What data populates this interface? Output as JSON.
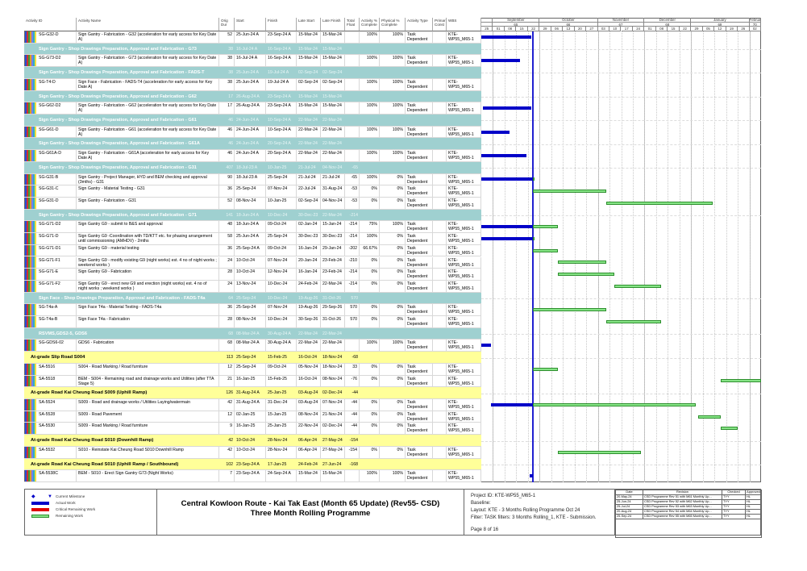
{
  "columns": {
    "id": "Activity ID",
    "name": "Activity Name",
    "dur": "Orig Dur",
    "start": "Start",
    "finish": "Finish",
    "lstart": "Late Start",
    "lfinish": "Late Finish",
    "tf": "Total Float",
    "apc": "Activity % Complete",
    "ppc": "Physical % Complete",
    "type": "Activity Type",
    "pc": "Primar Const",
    "wbs": "WBS"
  },
  "gantt": {
    "timeline_start": "25-Aug-24",
    "data_date": "25-Sep-24",
    "months": [
      {
        "name": "",
        "num": "",
        "weeks": 1
      },
      {
        "name": "September",
        "num": "65",
        "weeks": 4
      },
      {
        "name": "October",
        "num": "66",
        "weeks": 5
      },
      {
        "name": "November",
        "num": "67",
        "weeks": 4
      },
      {
        "name": "December",
        "num": "68",
        "weeks": 4
      },
      {
        "name": "January",
        "num": "69",
        "weeks": 5
      },
      {
        "name": "Februa",
        "num": "70",
        "weeks": 1
      }
    ],
    "weeks": [
      "25",
      "01",
      "08",
      "15",
      "22",
      "29",
      "06",
      "13",
      "20",
      "27",
      "03",
      "10",
      "17",
      "24",
      "01",
      "08",
      "15",
      "22",
      "29",
      "05",
      "12",
      "19",
      "26",
      "02"
    ],
    "colors": {
      "actual": "#0000c8",
      "remaining": "#86e486",
      "critical": "#e00000",
      "band": "#9fd0d0",
      "summary": "#ffff99"
    }
  },
  "rows": [
    {
      "kind": "act",
      "id": "SG-G32-D",
      "name": "Sign Gantry - Fabrication - G32 (acceleration for early access for Key Date A)",
      "dur": "52",
      "start": "25-Jun-24 A",
      "finish": "23-Sep-24 A",
      "lstart": "15-Mar-24",
      "lfinish": "15-Mar-24",
      "tf": "",
      "apc": "100%",
      "ppc": "100%",
      "type": "Task Dependent",
      "wbs": "KTE-WP55_M65-1"
    },
    {
      "kind": "band",
      "name": "Sign Gantry - Shop Drawings Preparation, Approval and Fabrication - G73",
      "dur": "38",
      "start": "16-Jul-24 A",
      "finish": "16-Sep-24 A",
      "lstart": "15-Mar-24",
      "lfinish": "15-Mar-24",
      "tf": ""
    },
    {
      "kind": "act",
      "id": "SG-G73-D2",
      "name": "Sign Gantry - Fabrication - G73 (acceleration for early access for Key Date A)",
      "dur": "38",
      "start": "16-Jul-24 A",
      "finish": "16-Sep-24 A",
      "lstart": "15-Mar-24",
      "lfinish": "15-Mar-24",
      "tf": "",
      "apc": "100%",
      "ppc": "100%",
      "type": "Task Dependent",
      "wbs": "KTE-WP55_M65-1"
    },
    {
      "kind": "band",
      "name": "Sign Gantry - Shop Drawings Preparation, Approval and Fabrication - FADS-T",
      "dur": "38",
      "start": "25-Jun-24 A",
      "finish": "19-Jul-24 A",
      "lstart": "02-Sep-24",
      "lfinish": "02-Sep-24",
      "tf": ""
    },
    {
      "kind": "act",
      "id": "SG-T4-D",
      "name": "Sign Face - Fabrication - FADS-T4 (acceleration for early access for Key Date A)",
      "dur": "38",
      "start": "25-Jun-24 A",
      "finish": "19-Jul-24 A",
      "lstart": "02-Sep-24",
      "lfinish": "02-Sep-24",
      "tf": "",
      "apc": "100%",
      "ppc": "100%",
      "type": "Task Dependent",
      "wbs": "KTE-WP55_M65-1"
    },
    {
      "kind": "band",
      "name": "Sign Gantry - Shop Drawings Preparation, Approval and Fabrication - G62",
      "dur": "17",
      "start": "26-Aug-24 A",
      "finish": "23-Sep-24 A",
      "lstart": "15-Mar-24",
      "lfinish": "15-Mar-24",
      "tf": ""
    },
    {
      "kind": "act",
      "id": "SG-G62-D2",
      "name": "Sign Gantry - Fabrication - G62 (acceleration for early access for Key Date A)",
      "dur": "17",
      "start": "26-Aug-24 A",
      "finish": "23-Sep-24 A",
      "lstart": "15-Mar-24",
      "lfinish": "15-Mar-24",
      "tf": "",
      "apc": "100%",
      "ppc": "100%",
      "type": "Task Dependent",
      "wbs": "KTE-WP55_M65-1"
    },
    {
      "kind": "band",
      "name": "Sign Gantry - Shop Drawings Preparation, Approval and Fabrication - G61",
      "dur": "46",
      "start": "24-Jun-24 A",
      "finish": "10-Sep-24 A",
      "lstart": "22-Mar-24",
      "lfinish": "22-Mar-24",
      "tf": ""
    },
    {
      "kind": "act",
      "id": "SG-G61-D",
      "name": "Sign Gantry - Fabrication - G61 (acceleration for early access for Key Date A)",
      "dur": "46",
      "start": "24-Jun-24 A",
      "finish": "10-Sep-24 A",
      "lstart": "22-Mar-24",
      "lfinish": "22-Mar-24",
      "tf": "",
      "apc": "100%",
      "ppc": "100%",
      "type": "Task Dependent",
      "wbs": "KTE-WP55_M65-1"
    },
    {
      "kind": "band",
      "name": "Sign Gantry - Shop Drawings Preparation, Approval and Fabrication - G61A",
      "dur": "46",
      "start": "24-Jun-24 A",
      "finish": "20-Sep-24 A",
      "lstart": "22-Mar-24",
      "lfinish": "22-Mar-24",
      "tf": ""
    },
    {
      "kind": "act",
      "id": "SG-G61A-D",
      "name": "Sign Gantry - Fabrication - G61A (acceleration for early access for Key Date A)",
      "dur": "46",
      "start": "24-Jun-24 A",
      "finish": "20-Sep-24 A",
      "lstart": "22-Mar-24",
      "lfinish": "22-Mar-24",
      "tf": "",
      "apc": "100%",
      "ppc": "100%",
      "type": "Task Dependent",
      "wbs": "KTE-WP55_M65-1"
    },
    {
      "kind": "band",
      "name": "Sign Gantry - Shop Drawings Preparation, Approval and Fabrication - G31",
      "dur": "407",
      "start": "18-Jul-23 A",
      "finish": "10-Jan-25",
      "lstart": "21-Jul-24",
      "lfinish": "04-Nov-24",
      "tf": "-65"
    },
    {
      "kind": "act",
      "id": "SG-G31-B",
      "name": "Sign Gantry - Project Manager, HYD and BEM checking and approval (3mths) - G31",
      "dur": "90",
      "start": "18-Jul-23 A",
      "finish": "25-Sep-24",
      "lstart": "21-Jul-24",
      "lfinish": "21-Jul-24",
      "tf": "-65",
      "apc": "100%",
      "ppc": "0%",
      "type": "Task Dependent",
      "wbs": "KTE-WP55_M65-1"
    },
    {
      "kind": "act",
      "id": "SG-G31-C",
      "name": "Sign Gantry - Material Testing - G31",
      "dur": "36",
      "start": "25-Sep-24",
      "finish": "07-Nov-24",
      "lstart": "22-Jul-24",
      "lfinish": "31-Aug-24",
      "tf": "-53",
      "apc": "0%",
      "ppc": "0%",
      "type": "Task Dependent",
      "wbs": "KTE-WP55_M65-1"
    },
    {
      "kind": "act",
      "id": "SG-G31-D",
      "name": "Sign Gantry - Fabrication - G31",
      "dur": "52",
      "start": "08-Nov-24",
      "finish": "10-Jan-25",
      "lstart": "02-Sep-24",
      "lfinish": "04-Nov-24",
      "tf": "-53",
      "apc": "0%",
      "ppc": "0%",
      "type": "Task Dependent",
      "wbs": "KTE-WP55_M65-1"
    },
    {
      "kind": "band",
      "name": "Sign Gantry - Shop Drawings Preparation, Approval and Fabrication - G71",
      "dur": "141",
      "start": "18-Jun-24 A",
      "finish": "10-Dec-24",
      "lstart": "30-Dec-23",
      "lfinish": "22-Mar-24",
      "tf": "-214"
    },
    {
      "kind": "act",
      "id": "SG-G71-D2",
      "name": "Sign Gantry G9 - submit to B&S and approval",
      "dur": "48",
      "start": "18-Jun-24 A",
      "finish": "09-Oct-24",
      "lstart": "02-Jan-24",
      "lfinish": "15-Jan-24",
      "tf": "-214",
      "apc": "75%",
      "ppc": "100%",
      "type": "Task Dependent",
      "wbs": "KTE-WP55_M65-1"
    },
    {
      "kind": "act",
      "id": "SG-G71-D",
      "name": "Sign Gantry G9 -Coordination with TD/KTT etc. for phasing arrangement until commissioning (AMHDV) - 2mths",
      "dur": "58",
      "start": "25-Jun-24 A",
      "finish": "25-Sep-24",
      "lstart": "30-Dec-23",
      "lfinish": "30-Dec-23",
      "tf": "-214",
      "apc": "100%",
      "ppc": "0%",
      "type": "Task Dependent",
      "wbs": "KTE-WP55_M65-1"
    },
    {
      "kind": "act",
      "id": "SG-G71-D1",
      "name": "Sign Gantry G9 - material testing",
      "dur": "36",
      "start": "25-Sep-24 A",
      "finish": "09-Oct-24",
      "lstart": "16-Jan-24",
      "lfinish": "29-Jan-24",
      "tf": "-202",
      "apc": "66.67%",
      "ppc": "0%",
      "type": "Task Dependent",
      "wbs": "KTE-WP55_M65-1"
    },
    {
      "kind": "act",
      "id": "SG-G71-F1",
      "name": "Sign Gantry G9 - modify existing G9 (night works) est. 4 no of night works ; weekend works )",
      "dur": "24",
      "start": "10-Oct-24",
      "finish": "07-Nov-24",
      "lstart": "20-Jan-24",
      "lfinish": "23-Feb-24",
      "tf": "-210",
      "apc": "0%",
      "ppc": "0%",
      "type": "Task Dependent",
      "wbs": "KTE-WP55_M65-1"
    },
    {
      "kind": "act",
      "id": "SG-G71-E",
      "name": "Sign Gantry G9 - Fabrication",
      "dur": "28",
      "start": "10-Oct-24",
      "finish": "12-Nov-24",
      "lstart": "16-Jan-24",
      "lfinish": "23-Feb-24",
      "tf": "-214",
      "apc": "0%",
      "ppc": "0%",
      "type": "Task Dependent",
      "wbs": "KTE-WP55_M65-1"
    },
    {
      "kind": "act",
      "id": "SG-G71-F2",
      "name": "Sign Gantry G9 - erect new G9 and erection (night works) est. 4 no of night works ; weekend works )",
      "dur": "24",
      "start": "13-Nov-24",
      "finish": "10-Dec-24",
      "lstart": "24-Feb-24",
      "lfinish": "22-Mar-24",
      "tf": "-214",
      "apc": "0%",
      "ppc": "0%",
      "type": "Task Dependent",
      "wbs": "KTE-WP55_M65-1"
    },
    {
      "kind": "band",
      "name": "Sign Face - Shop Drawings Preparation, Approval and Fabrication - FADS-T4a",
      "dur": "64",
      "start": "25-Sep-24",
      "finish": "10-Dec-24",
      "lstart": "19-Aug-26",
      "lfinish": "31-Oct-26",
      "tf": "570"
    },
    {
      "kind": "act",
      "id": "SG-T4a-A",
      "name": "Sign Face T4a - Material Testing - FADS-T4a",
      "dur": "36",
      "start": "25-Sep-24",
      "finish": "07-Nov-24",
      "lstart": "19-Aug-26",
      "lfinish": "29-Sep-26",
      "tf": "570",
      "apc": "0%",
      "ppc": "0%",
      "type": "Task Dependent",
      "wbs": "KTE-WP55_M65-1"
    },
    {
      "kind": "act",
      "id": "SG-T4a-B",
      "name": "Sign Face T4a - Fabrication",
      "dur": "28",
      "start": "08-Nov-24",
      "finish": "10-Dec-24",
      "lstart": "30-Sep-26",
      "lfinish": "31-Oct-26",
      "tf": "570",
      "apc": "0%",
      "ppc": "0%",
      "type": "Task Dependent",
      "wbs": "KTE-WP55_M65-1"
    },
    {
      "kind": "band",
      "name": "RSVMS,GDS2-5, GDS6",
      "dur": "68",
      "start": "08-Mar-24 A",
      "finish": "30-Aug-24 A",
      "lstart": "22-Mar-24",
      "lfinish": "22-Mar-24",
      "tf": ""
    },
    {
      "kind": "act",
      "id": "SG-GDS6-02",
      "name": "GDS6 - Fabrication",
      "dur": "68",
      "start": "08-Mar-24 A",
      "finish": "30-Aug-24 A",
      "lstart": "22-Mar-24",
      "lfinish": "22-Mar-24",
      "tf": "",
      "apc": "100%",
      "ppc": "100%",
      "type": "Task Dependent",
      "wbs": "KTE-WP55_M65-1"
    },
    {
      "kind": "sum",
      "name": "At-grade Slip Road S004",
      "dur": "113",
      "start": "25-Sep-24",
      "finish": "15-Feb-25",
      "lstart": "16-Oct-24",
      "lfinish": "18-Nov-24",
      "tf": "-68"
    },
    {
      "kind": "act",
      "id": "SA-5516",
      "name": "S004 - Road Marking / Road furniture",
      "dur": "12",
      "start": "25-Sep-24",
      "finish": "09-Oct-24",
      "lstart": "05-Nov-24",
      "lfinish": "18-Nov-24",
      "tf": "33",
      "apc": "0%",
      "ppc": "0%",
      "type": "Task Dependent",
      "wbs": "KTE-WP55_M65-1"
    },
    {
      "kind": "act",
      "id": "SA-5518",
      "name": "BEM - S004 - Remaining road and drainage works and Utilities (after TTA Stage 5)",
      "dur": "21",
      "start": "16-Jan-25",
      "finish": "15-Feb-25",
      "lstart": "16-Oct-24",
      "lfinish": "08-Nov-24",
      "tf": "-76",
      "apc": "0%",
      "ppc": "0%",
      "type": "Task Dependent",
      "wbs": "KTE-WP55_M65-1"
    },
    {
      "kind": "sum",
      "name": "At-grade Road Kai Cheung Road S009 (Uphill Ramp)",
      "dur": "126",
      "start": "31-Aug-24 A",
      "finish": "25-Jan-25",
      "lstart": "03-Aug-24",
      "lfinish": "02-Dec-24",
      "tf": "-44"
    },
    {
      "kind": "act",
      "id": "SA-5524",
      "name": "S009 - Road and drainage works / Utilities Laying/watermain",
      "dur": "42",
      "start": "31-Aug-24 A",
      "finish": "31-Dec-24",
      "lstart": "03-Aug-24",
      "lfinish": "07-Nov-24",
      "tf": "-44",
      "apc": "0%",
      "ppc": "0%",
      "type": "Task Dependent",
      "wbs": "KTE-WP55_M65-1"
    },
    {
      "kind": "act",
      "id": "SA-5528",
      "name": "S009 - Road Pavement",
      "dur": "12",
      "start": "02-Jan-25",
      "finish": "15-Jan-25",
      "lstart": "08-Nov-24",
      "lfinish": "21-Nov-24",
      "tf": "-44",
      "apc": "0%",
      "ppc": "0%",
      "type": "Task Dependent",
      "wbs": "KTE-WP55_M65-1"
    },
    {
      "kind": "act",
      "id": "SA-5530",
      "name": "S009 - Road Marking / Road furniture",
      "dur": "9",
      "start": "16-Jan-25",
      "finish": "25-Jan-25",
      "lstart": "22-Nov-24",
      "lfinish": "02-Dec-24",
      "tf": "-44",
      "apc": "0%",
      "ppc": "0%",
      "type": "Task Dependent",
      "wbs": "KTE-WP55_M65-1"
    },
    {
      "kind": "sum",
      "name": "At-grade Road Kai Cheung Road S010 (Downhill Ramp)",
      "dur": "42",
      "start": "10-Oct-24",
      "finish": "28-Nov-24",
      "lstart": "06-Apr-24",
      "lfinish": "27-May-24",
      "tf": "-154"
    },
    {
      "kind": "act",
      "id": "SA-5532",
      "name": "S010 - Reinstate Kai Cheung Road S010 Downhill Ramp",
      "dur": "42",
      "start": "10-Oct-24",
      "finish": "28-Nov-24",
      "lstart": "06-Apr-24",
      "lfinish": "27-May-24",
      "tf": "-154",
      "apc": "0%",
      "ppc": "0%",
      "type": "Task Dependent",
      "wbs": "KTE-WP55_M65-1"
    },
    {
      "kind": "sum",
      "name": "At-grade Road Kai Cheung Road S010 (Uphill Ramp / Southbound)",
      "dur": "102",
      "start": "23-Sep-24 A",
      "finish": "17-Jan-25",
      "lstart": "24-Feb-24",
      "lfinish": "27-Jun-24",
      "tf": "-168"
    },
    {
      "kind": "act",
      "id": "SA-5538C",
      "name": "BEM - S010 - Erect Sign Gantry G73 (Night Works)",
      "dur": "7",
      "start": "23-Sep-24 A",
      "finish": "24-Sep-24 A",
      "lstart": "15-Mar-24",
      "lfinish": "15-Mar-24",
      "tf": "",
      "apc": "100%",
      "ppc": "100%",
      "type": "Task Dependent",
      "wbs": "KTE-WP55_M65-1"
    }
  ],
  "legend": {
    "milestone": "Current Milestone",
    "actual": "Actual Work",
    "critical": "Critical Remaining Work",
    "remaining": "Remaining Work"
  },
  "footer": {
    "title_line1": "Central Kowloon Route - Kai Tak East (Month 65 Update) (Rev55- CSD)",
    "title_line2": "Three Month Rolling Programme",
    "project_id": "Project ID: KTE-WP55_M65-1",
    "baseline": "Baseline:",
    "layout": "Layout: KTE - 3 Months Rolling Programme Oct 24",
    "filter": "Filter: TASK filters: 3 Months Rolling_1, KTE - Submission.",
    "page": "Page 8 of 16"
  },
  "revisions": {
    "headers": {
      "date": "Date",
      "revision": "Revision",
      "checked": "Checked",
      "approved": "Approved"
    },
    "rows": [
      {
        "date": "20-May-24",
        "revision": "CSD Programme Rev 51 with M61 Monthly Up...",
        "checked": "TYY",
        "approved": "HL"
      },
      {
        "date": "25-Jun-24",
        "revision": "CSD Programme Rev 52 with M62 Monthly Up...",
        "checked": "TYY",
        "approved": "HL"
      },
      {
        "date": "25-Jul-24",
        "revision": "CSD Programme Rev 53 with M63 Monthly Up...",
        "checked": "TYY",
        "approved": "HL"
      },
      {
        "date": "20-Aug-24",
        "revision": "CSD Programme Rev 54 with M64 Monthly Up...",
        "checked": "TYY",
        "approved": "HL"
      },
      {
        "date": "25-Sep-24",
        "revision": "CSD Programme Rev 55 with M65 Monthly Up...",
        "checked": "TYY",
        "approved": "HL"
      }
    ]
  }
}
